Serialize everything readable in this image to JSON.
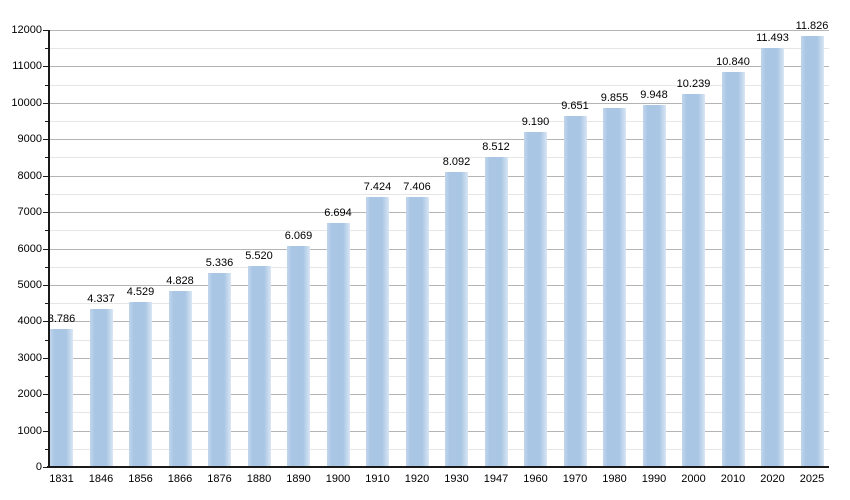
{
  "chart_data": {
    "type": "bar",
    "title": "",
    "xlabel": "",
    "ylabel": "",
    "categories": [
      "1831",
      "1846",
      "1856",
      "1866",
      "1876",
      "1880",
      "1890",
      "1900",
      "1910",
      "1920",
      "1930",
      "1947",
      "1960",
      "1970",
      "1980",
      "1990",
      "2000",
      "2010",
      "2020",
      "2025"
    ],
    "values": [
      3786,
      4337,
      4529,
      4828,
      5336,
      5520,
      6069,
      6694,
      7424,
      7406,
      8092,
      8512,
      9190,
      9651,
      9855,
      9948,
      10239,
      10840,
      11493,
      11826
    ],
    "value_labels": [
      "3.786",
      "4.337",
      "4.529",
      "4.828",
      "5.336",
      "5.520",
      "6.069",
      "6.694",
      "7.424",
      "7.406",
      "8.092",
      "8.512",
      "9.190",
      "9.651",
      "9.855",
      "9.948",
      "10.239",
      "10.840",
      "11.493",
      "11.826"
    ],
    "ylim": [
      0,
      12000
    ],
    "ytick_step": 1000,
    "ytick_minor_step": 500,
    "y_tick_labels": [
      "0",
      "1000",
      "2000",
      "3000",
      "4000",
      "5000",
      "6000",
      "7000",
      "8000",
      "9000",
      "10000",
      "11000",
      "12000"
    ],
    "grid": "major and minor horizontal gridlines",
    "legend": "none",
    "colors": {
      "bar_fill": "#a9c6e4",
      "bar_edge_light": "#d9e6f4",
      "bar_edge_left": "#c2d6ec",
      "grid_major": "#b4b4b4",
      "grid_minor": "#e6e6e6",
      "axis": "#1a1a1a",
      "text": "#000000",
      "background": "#ffffff"
    }
  }
}
